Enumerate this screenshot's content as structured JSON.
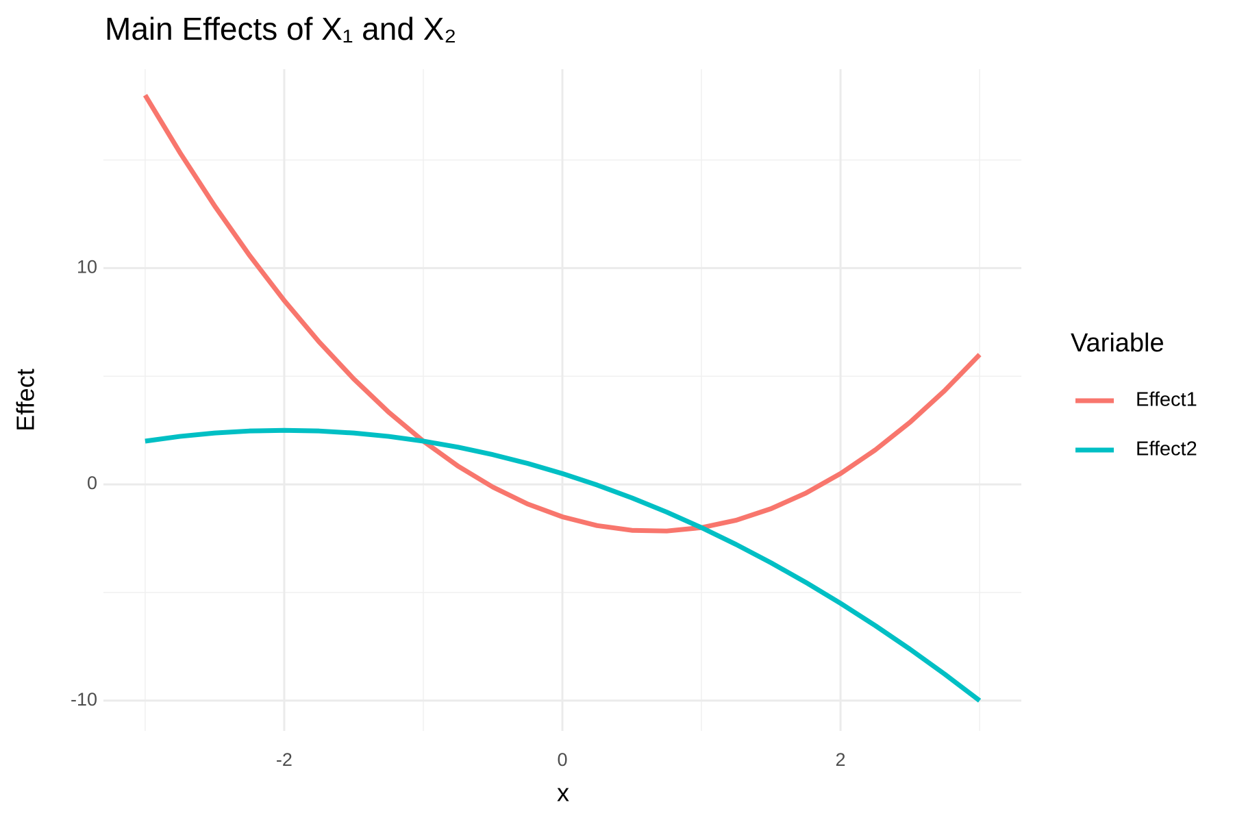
{
  "chart_data": {
    "type": "line",
    "title": "Main Effects of X₁ and X₂",
    "xlabel": "x",
    "ylabel": "Effect",
    "legend_title": "Variable",
    "legend_position": "right",
    "grid": true,
    "x": [
      -3,
      -2.75,
      -2.5,
      -2.25,
      -2,
      -1.75,
      -1.5,
      -1.25,
      -1,
      -0.75,
      -0.5,
      -0.25,
      0,
      0.25,
      0.5,
      0.75,
      1,
      1.25,
      1.5,
      1.75,
      2,
      2.25,
      2.5,
      2.75,
      3
    ],
    "series": [
      {
        "name": "Effect1",
        "color": "#f8766d",
        "values": [
          18,
          15.34375,
          12.875,
          10.59375,
          8.5,
          6.59375,
          4.875,
          3.34375,
          2,
          0.84375,
          -0.125,
          -0.90625,
          -1.5,
          -1.90625,
          -2.125,
          -2.15625,
          -2,
          -1.65625,
          -1.125,
          -0.40625,
          0.5,
          1.59375,
          2.875,
          4.34375,
          6
        ]
      },
      {
        "name": "Effect2",
        "color": "#00bfc4",
        "values": [
          2,
          2.21875,
          2.375,
          2.46875,
          2.5,
          2.46875,
          2.375,
          2.21875,
          2,
          1.71875,
          1.375,
          0.96875,
          0.5,
          -0.03125,
          -0.625,
          -1.28125,
          -2,
          -2.78125,
          -3.625,
          -4.53125,
          -5.5,
          -6.53125,
          -7.625,
          -8.78125,
          -10
        ]
      }
    ],
    "xlim": [
      -3.3,
      3.3
    ],
    "xticks": [
      -2,
      0,
      2
    ],
    "ylim": [
      -11.4,
      19.2
    ],
    "yticks": [
      -10,
      0,
      10
    ]
  }
}
